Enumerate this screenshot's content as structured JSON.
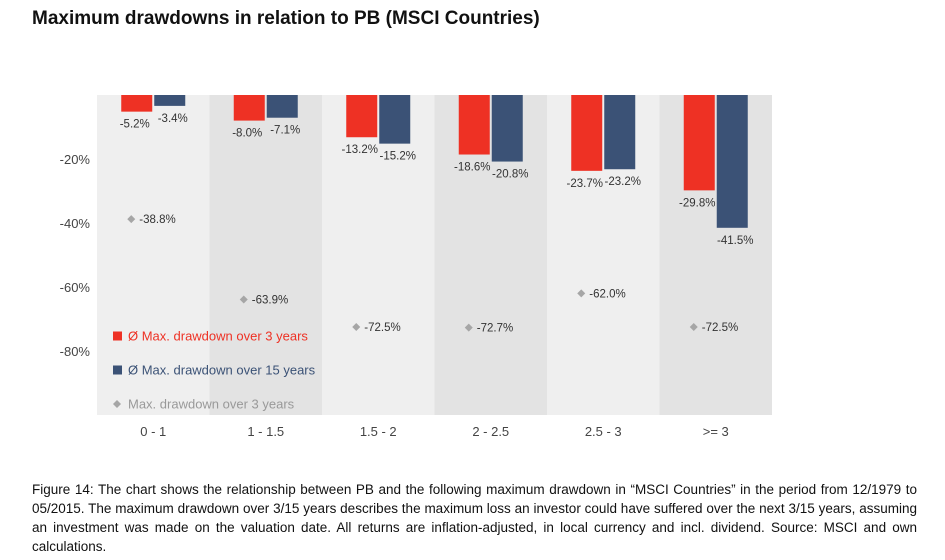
{
  "title": "Maximum drawdowns in relation to PB (MSCI Countries)",
  "caption": "Figure 14: The chart shows the relationship between PB and the following maximum drawdown in “MSCI Countries” in the period from 12/1979 to 05/2015. The maximum drawdown over 3/15 years describes the maximum loss an investor could have suffered over the next 3/15 years, assuming an investment was made on the valuation date. All returns are inflation-adjusted, in local currency and incl. dividend. Source: MSCI and own calculations.",
  "colors": {
    "series3y": "#ee3124",
    "series15y": "#3b5276",
    "marker": "#a6a6a6",
    "band_dark": "#e3e3e3",
    "band_light": "#efefef"
  },
  "chart_data": {
    "type": "bar",
    "categories": [
      "0 - 1",
      "1 - 1.5",
      "1.5 - 2",
      "2 - 2.5",
      "2.5 - 3",
      ">= 3"
    ],
    "ylim": [
      -100,
      0
    ],
    "yticks": [
      -20,
      -40,
      -60,
      -80
    ],
    "ytick_labels": [
      "-20%",
      "-40%",
      "-60%",
      "-80%"
    ],
    "grid": false,
    "legend_position": "bottom-left",
    "series": [
      {
        "name": "Ø Max. drawdown over 3 years",
        "kind": "bar",
        "color": "#ee3124",
        "values": [
          -5.2,
          -8.0,
          -13.2,
          -18.6,
          -23.7,
          -29.8
        ],
        "labels": [
          "-5.2%",
          "-8.0%",
          "-13.2%",
          "-18.6%",
          "-23.7%",
          "-29.8%"
        ]
      },
      {
        "name": "Ø Max. drawdown over 15 years",
        "kind": "bar",
        "color": "#3b5276",
        "values": [
          -3.4,
          -7.1,
          -15.2,
          -20.8,
          -23.2,
          -41.5
        ],
        "labels": [
          "-3.4%",
          "-7.1%",
          "-15.2%",
          "-20.8%",
          "-23.2%",
          "-41.5%"
        ]
      },
      {
        "name": "Max. drawdown over 3 years",
        "kind": "marker",
        "color": "#a6a6a6",
        "values": [
          -38.8,
          -63.9,
          -72.5,
          -72.7,
          -62.0,
          -72.5
        ],
        "labels": [
          "-38.8%",
          "-63.9%",
          "-72.5%",
          "-72.7%",
          "-62.0%",
          "-72.5%"
        ]
      }
    ]
  }
}
